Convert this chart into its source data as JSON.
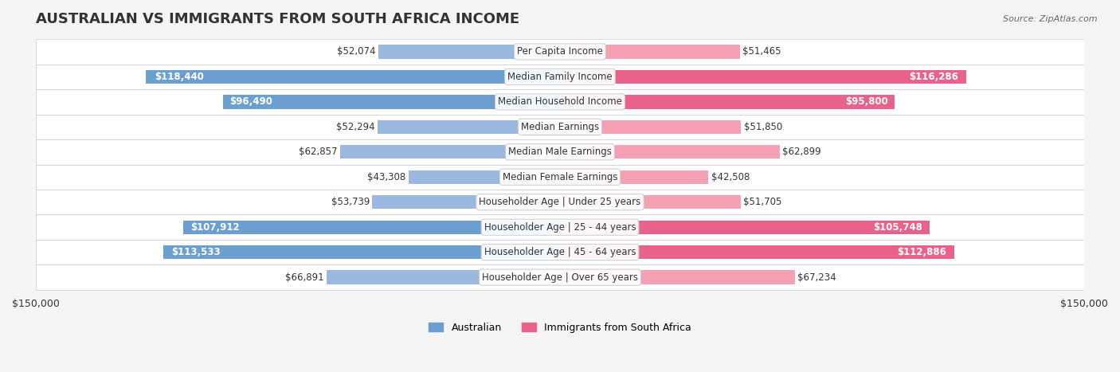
{
  "title": "AUSTRALIAN VS IMMIGRANTS FROM SOUTH AFRICA INCOME",
  "source": "Source: ZipAtlas.com",
  "categories": [
    "Per Capita Income",
    "Median Family Income",
    "Median Household Income",
    "Median Earnings",
    "Median Male Earnings",
    "Median Female Earnings",
    "Householder Age | Under 25 years",
    "Householder Age | 25 - 44 years",
    "Householder Age | 45 - 64 years",
    "Householder Age | Over 65 years"
  ],
  "australian_values": [
    52074,
    118440,
    96490,
    52294,
    62857,
    43308,
    53739,
    107912,
    113533,
    66891
  ],
  "immigrant_values": [
    51465,
    116286,
    95800,
    51850,
    62899,
    42508,
    51705,
    105748,
    112886,
    67234
  ],
  "australian_labels": [
    "$52,074",
    "$118,440",
    "$96,490",
    "$52,294",
    "$62,857",
    "$43,308",
    "$53,739",
    "$107,912",
    "$113,533",
    "$66,891"
  ],
  "immigrant_labels": [
    "$51,465",
    "$116,286",
    "$95,800",
    "$51,850",
    "$62,899",
    "$42,508",
    "$51,705",
    "$105,748",
    "$112,886",
    "$67,234"
  ],
  "max_value": 150000,
  "bar_height": 0.55,
  "australian_color": "#9cb8df",
  "australian_color_strong": "#6b9fcf",
  "immigrant_color": "#f4a0b5",
  "immigrant_color_strong": "#e8628a",
  "bg_color": "#f5f5f5",
  "row_bg_light": "#fafafa",
  "row_bg_dark": "#f0f0f0",
  "label_threshold": 80000,
  "title_fontsize": 13,
  "axis_fontsize": 9,
  "bar_label_fontsize": 8.5,
  "category_fontsize": 8.5
}
